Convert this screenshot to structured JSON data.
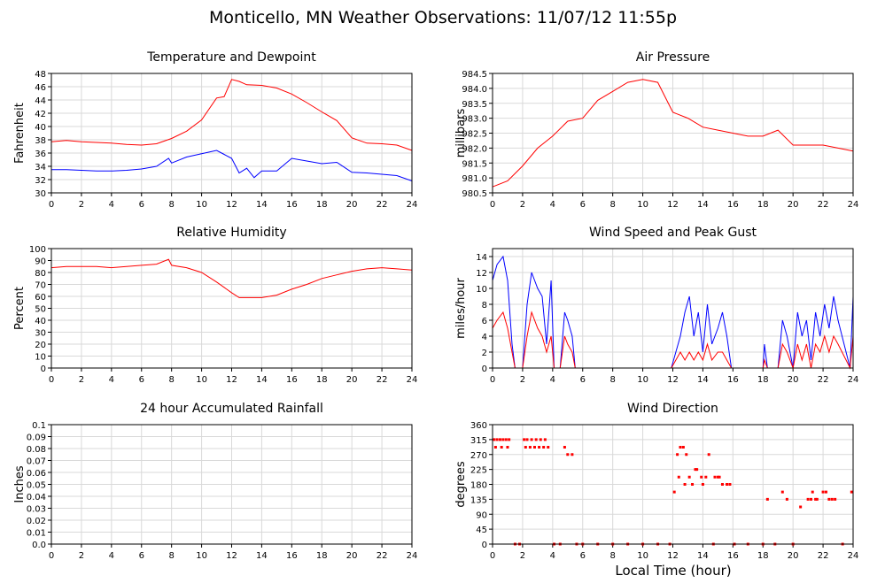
{
  "title": "Monticello, MN Weather Observations: 11/07/12 11:55p",
  "xlabel": "Local Time (hour)",
  "colors": {
    "red": "#ff0000",
    "blue": "#0000ff",
    "grid": "#d9d9d9",
    "frame": "#000000"
  },
  "chart_data": [
    {
      "id": "temp",
      "type": "line",
      "title": "Temperature and Dewpoint",
      "ylabel": "Fahrenheit",
      "xlim": [
        0,
        24
      ],
      "ylim": [
        30,
        48
      ],
      "yticks": [
        30,
        32,
        34,
        36,
        38,
        40,
        42,
        44,
        46,
        48
      ],
      "xticks": [
        0,
        2,
        4,
        6,
        8,
        10,
        12,
        14,
        16,
        18,
        20,
        22,
        24
      ],
      "grid": true,
      "series": [
        {
          "color": "#ff0000",
          "x": [
            0,
            1,
            2,
            3,
            4,
            5,
            6,
            7,
            8,
            9,
            10,
            11,
            11.5,
            12,
            12.5,
            13,
            14,
            15,
            16,
            17,
            18,
            19,
            20,
            21,
            22,
            23,
            24
          ],
          "y": [
            37.7,
            37.9,
            37.7,
            37.6,
            37.5,
            37.3,
            37.2,
            37.4,
            38.2,
            39.3,
            41.0,
            44.3,
            44.5,
            47.1,
            46.8,
            46.3,
            46.2,
            45.8,
            44.9,
            43.6,
            42.2,
            40.9,
            38.3,
            37.5,
            37.4,
            37.2,
            36.4
          ]
        },
        {
          "color": "#0000ff",
          "x": [
            0,
            1,
            2,
            3,
            4,
            5,
            6,
            7,
            7.8,
            8,
            9,
            10,
            11,
            11.5,
            12,
            12.5,
            13,
            13.5,
            14,
            15,
            16,
            17,
            18,
            19,
            20,
            21,
            22,
            23,
            24
          ],
          "y": [
            33.5,
            33.5,
            33.4,
            33.3,
            33.3,
            33.4,
            33.6,
            34.0,
            35.2,
            34.5,
            35.4,
            35.9,
            36.4,
            35.8,
            35.2,
            33.0,
            33.7,
            32.3,
            33.3,
            33.3,
            35.2,
            34.8,
            34.4,
            34.6,
            33.1,
            33.0,
            32.8,
            32.6,
            31.8
          ]
        }
      ]
    },
    {
      "id": "pressure",
      "type": "line",
      "title": "Air Pressure",
      "ylabel": "millibars",
      "xlim": [
        0,
        24
      ],
      "ylim": [
        980.5,
        984.5
      ],
      "yticks": [
        "980.5",
        "981.0",
        "981.5",
        "982.0",
        "982.5",
        "983.0",
        "983.5",
        "984.0",
        "984.5"
      ],
      "xticks": [
        0,
        2,
        4,
        6,
        8,
        10,
        12,
        14,
        16,
        18,
        20,
        22,
        24
      ],
      "grid": true,
      "series": [
        {
          "color": "#ff0000",
          "x": [
            0,
            1,
            2,
            3,
            4,
            5,
            6,
            7,
            8,
            9,
            10,
            11,
            12,
            13,
            14,
            15,
            16,
            17,
            18,
            19,
            20,
            21,
            22,
            23,
            24
          ],
          "y": [
            980.7,
            980.9,
            981.4,
            982.0,
            982.4,
            982.9,
            983.0,
            983.6,
            983.9,
            984.2,
            984.3,
            984.2,
            983.2,
            983.0,
            982.7,
            982.6,
            982.5,
            982.4,
            982.4,
            982.6,
            982.1,
            982.1,
            982.1,
            982.0,
            981.9
          ]
        }
      ]
    },
    {
      "id": "rh",
      "type": "line",
      "title": "Relative Humidity",
      "ylabel": "Percent",
      "xlim": [
        0,
        24
      ],
      "ylim": [
        0,
        100
      ],
      "yticks": [
        0,
        10,
        20,
        30,
        40,
        50,
        60,
        70,
        80,
        90,
        100
      ],
      "xticks": [
        0,
        2,
        4,
        6,
        8,
        10,
        12,
        14,
        16,
        18,
        20,
        22,
        24
      ],
      "grid": true,
      "series": [
        {
          "color": "#ff0000",
          "x": [
            0,
            1,
            2,
            3,
            4,
            5,
            6,
            7,
            7.8,
            8,
            9,
            10,
            11,
            12,
            12.5,
            13,
            14,
            15,
            16,
            17,
            18,
            19,
            20,
            21,
            22,
            23,
            24
          ],
          "y": [
            84,
            85,
            85,
            85,
            84,
            85,
            86,
            87,
            91,
            86,
            84,
            80,
            72,
            63,
            59,
            59,
            59,
            61,
            66,
            70,
            75,
            78,
            81,
            83,
            84,
            83,
            82
          ]
        }
      ]
    },
    {
      "id": "wind",
      "type": "line",
      "title": "Wind Speed and Peak Gust",
      "ylabel": "miles/hour",
      "xlim": [
        0,
        24
      ],
      "ylim": [
        0,
        15
      ],
      "yticks": [
        0,
        2,
        4,
        6,
        8,
        10,
        12,
        14
      ],
      "xticks": [
        0,
        2,
        4,
        6,
        8,
        10,
        12,
        14,
        16,
        18,
        20,
        22,
        24
      ],
      "grid": true,
      "series": [
        {
          "color": "#0000ff",
          "x": [
            0,
            0.3,
            0.7,
            1.0,
            1.3,
            1.5,
            2.0,
            2.3,
            2.6,
            3.0,
            3.3,
            3.6,
            3.9,
            4.1,
            4.5,
            4.8,
            5.0,
            5.3,
            5.5,
            6,
            8,
            10,
            11.9,
            12.2,
            12.5,
            12.8,
            13.1,
            13.4,
            13.7,
            14.0,
            14.3,
            14.6,
            15.0,
            15.3,
            15.6,
            15.9,
            16.1,
            18.0,
            18.1,
            18.3,
            19.0,
            19.3,
            19.6,
            20.0,
            20.3,
            20.6,
            20.9,
            21.2,
            21.5,
            21.8,
            22.1,
            22.4,
            22.7,
            23.0,
            23.8,
            24.0
          ],
          "y": [
            11,
            13,
            14,
            11,
            3,
            0,
            0,
            8,
            12,
            10,
            9,
            3,
            11,
            0,
            0,
            7,
            6,
            4,
            0,
            0,
            0,
            0,
            0,
            2,
            4,
            7,
            9,
            4,
            7,
            2,
            8,
            3,
            5,
            7,
            4,
            0,
            0,
            0,
            3,
            0,
            0,
            6,
            4,
            0,
            7,
            4,
            6,
            1,
            7,
            4,
            8,
            5,
            9,
            6,
            0,
            9
          ]
        },
        {
          "color": "#ff0000",
          "x": [
            0,
            0.3,
            0.7,
            1.0,
            1.3,
            1.5,
            2.0,
            2.3,
            2.6,
            3.0,
            3.3,
            3.6,
            3.9,
            4.1,
            4.5,
            4.8,
            5.0,
            5.3,
            5.5,
            6,
            8,
            10,
            11.9,
            12.2,
            12.5,
            12.8,
            13.1,
            13.4,
            13.7,
            14.0,
            14.3,
            14.6,
            15.0,
            15.3,
            15.6,
            15.9,
            16.1,
            18.0,
            18.1,
            18.3,
            19.0,
            19.3,
            19.6,
            20.0,
            20.3,
            20.6,
            20.9,
            21.2,
            21.5,
            21.8,
            22.1,
            22.4,
            22.7,
            23.0,
            23.8,
            24.0
          ],
          "y": [
            5,
            6,
            7,
            5,
            2,
            0,
            0,
            4,
            7,
            5,
            4,
            2,
            4,
            0,
            0,
            4,
            3,
            2,
            0,
            0,
            0,
            0,
            0,
            1,
            2,
            1,
            2,
            1,
            2,
            1,
            3,
            1,
            2,
            2,
            1,
            0,
            0,
            0,
            1,
            0,
            0,
            3,
            2,
            0,
            3,
            1,
            3,
            0,
            3,
            2,
            4,
            2,
            4,
            3,
            0,
            4
          ]
        }
      ]
    },
    {
      "id": "rain",
      "type": "line",
      "title": "24 hour Accumulated Rainfall",
      "ylabel": "Inches",
      "xlim": [
        0,
        24
      ],
      "ylim": [
        0,
        0.1
      ],
      "yticks": [
        "0.0",
        "0.01",
        "0.02",
        "0.03",
        "0.04",
        "0.05",
        "0.06",
        "0.07",
        "0.08",
        "0.09",
        "0.1"
      ],
      "xticks": [
        0,
        2,
        4,
        6,
        8,
        10,
        12,
        14,
        16,
        18,
        20,
        22,
        24
      ],
      "grid": true,
      "series": [
        {
          "color": "#ff0000",
          "x": [
            0,
            24
          ],
          "y": [
            0,
            0
          ]
        }
      ]
    },
    {
      "id": "dir",
      "type": "scatter",
      "title": "Wind Direction",
      "ylabel": "degrees",
      "xlabel": "Local Time (hour)",
      "xlim": [
        0,
        24
      ],
      "ylim": [
        0,
        360
      ],
      "yticks": [
        0,
        45,
        90,
        135,
        180,
        225,
        270,
        315,
        360
      ],
      "xticks": [
        0,
        2,
        4,
        6,
        8,
        10,
        12,
        14,
        16,
        18,
        20,
        22,
        24
      ],
      "grid": true,
      "series": [
        {
          "color": "#ff0000",
          "x": [
            0.1,
            0.3,
            0.5,
            0.7,
            0.9,
            1.1,
            0.2,
            0.6,
            1.0,
            1.5,
            1.8,
            2.1,
            2.3,
            2.6,
            2.9,
            3.2,
            3.5,
            2.2,
            2.5,
            2.8,
            3.1,
            3.4,
            3.7,
            4.1,
            4.5,
            4.8,
            5.0,
            5.3,
            5.6,
            6,
            7,
            8,
            9,
            10,
            11,
            11.8,
            12.1,
            12.3,
            12.5,
            12.7,
            12.9,
            13.1,
            12.4,
            12.8,
            13.3,
            13.6,
            13.9,
            14.2,
            13.5,
            14.0,
            14.4,
            14.7,
            15.0,
            15.3,
            15.6,
            15.8,
            15.1,
            14.8,
            16.1,
            17,
            18,
            18.3,
            18.8,
            19.3,
            19.6,
            20,
            20.5,
            21.0,
            21.3,
            21.6,
            22.0,
            22.4,
            22.8,
            21.5,
            22.2,
            22.6,
            21.2,
            23.3,
            23.9
          ],
          "y": [
            315,
            315,
            315,
            315,
            315,
            315,
            292,
            292,
            292,
            0,
            0,
            315,
            315,
            315,
            315,
            315,
            315,
            292,
            292,
            292,
            292,
            292,
            292,
            0,
            0,
            292,
            270,
            270,
            0,
            0,
            0,
            0,
            0,
            0,
            0,
            0,
            157,
            270,
            292,
            292,
            270,
            202,
            202,
            180,
            180,
            225,
            202,
            202,
            225,
            180,
            270,
            0,
            202,
            180,
            180,
            180,
            202,
            202,
            0,
            0,
            0,
            135,
            0,
            157,
            135,
            0,
            112,
            135,
            157,
            135,
            157,
            135,
            135,
            135,
            157,
            135,
            135,
            0,
            157
          ]
        }
      ]
    }
  ]
}
